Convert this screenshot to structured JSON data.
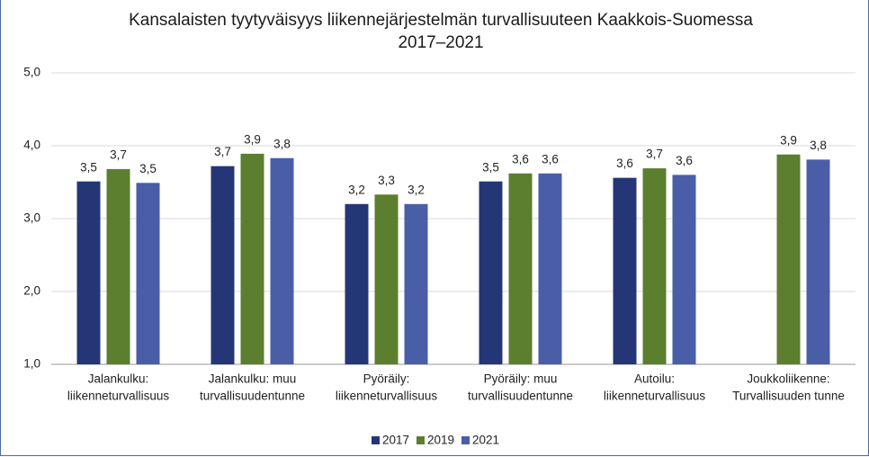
{
  "chart_data": {
    "type": "bar",
    "title": "Kansalaisten tyytyväisyys liikennejärjestelmän turvallisuuteen Kaakkois-Suomessa 2017–2021",
    "categories": [
      [
        "Jalankulku:",
        "liikenneturvallisuus"
      ],
      [
        "Jalankulku: muu",
        "turvallisuudentunne"
      ],
      [
        "Pyöräily:",
        "liikenneturvallisuus"
      ],
      [
        "Pyöräily: muu",
        "turvallisuudentunne"
      ],
      [
        "Autoilu:",
        "liikenneturvallisuus"
      ],
      [
        "Joukkoliikenne:",
        "Turvallisuuden tunne"
      ]
    ],
    "series": [
      {
        "name": "2017",
        "color": "#253676",
        "values": [
          3.51,
          3.72,
          3.2,
          3.51,
          3.56,
          null
        ],
        "value_labels": [
          "3,5",
          "3,7",
          "3,2",
          "3,5",
          "3,6",
          null
        ]
      },
      {
        "name": "2019",
        "color": "#5b7f2f",
        "values": [
          3.68,
          3.89,
          3.33,
          3.62,
          3.69,
          3.88
        ],
        "value_labels": [
          "3,7",
          "3,9",
          "3,3",
          "3,6",
          "3,7",
          "3,9"
        ]
      },
      {
        "name": "2021",
        "color": "#4a5ea8",
        "values": [
          3.49,
          3.83,
          3.2,
          3.62,
          3.6,
          3.81
        ],
        "value_labels": [
          "3,5",
          "3,8",
          "3,2",
          "3,6",
          "3,6",
          "3,8"
        ]
      }
    ],
    "ylim": [
      1,
      5
    ],
    "yticks": [
      {
        "value": 1,
        "label": "1,0"
      },
      {
        "value": 2,
        "label": "2,0"
      },
      {
        "value": 3,
        "label": "3,0"
      },
      {
        "value": 4,
        "label": "4,0"
      },
      {
        "value": 5,
        "label": "5,0"
      }
    ],
    "grid": true,
    "legend": "bottom"
  }
}
